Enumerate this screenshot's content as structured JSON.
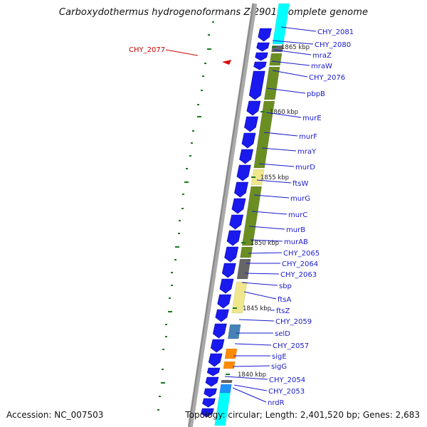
{
  "title": "Carboxydothermus hydrogenoformans Z-2901, complete genome",
  "footer": {
    "accession": "Accession: NC_007503",
    "topology": "Topology: circular; Length: 2,401,520 bp; Genes: 2,683"
  },
  "colors": {
    "cds_arrow": "#1a1aee",
    "gene_label": "#1a1acc",
    "highlight_label": "#cc0000",
    "backbone": "#888888",
    "gc_skew_tick": "#1a7a1a",
    "cog_olive": "#6b8e23",
    "cog_khaki": "#f0e68c",
    "cog_gray": "#666666",
    "cog_cyan": "#00ffff",
    "cog_orange": "#ff8c00",
    "cog_steelblue": "#4682b4",
    "cog_skyblue": "#1e90ff"
  },
  "gene_labels": [
    "CHY_2081",
    "CHY_2080",
    "mraZ",
    "mraW",
    "CHY_2076",
    "pbpB",
    "murE",
    "murF",
    "mraY",
    "murD",
    "ftsW",
    "murG",
    "murC",
    "murB",
    "murAB",
    "CHY_2065",
    "CHY_2064",
    "CHY_2063",
    "sbp",
    "ftsA",
    "ftsZ",
    "CHY_2059",
    "selD",
    "CHY_2057",
    "sigE",
    "sigG",
    "CHY_2054",
    "CHY_2053",
    "nrdR"
  ],
  "highlight_label": "CHY_2077",
  "kbp_labels": [
    "1865 kbp",
    "1860 kbp",
    "1855 kbp",
    "1850 kbp",
    "1845 kbp",
    "1840 kbp"
  ]
}
